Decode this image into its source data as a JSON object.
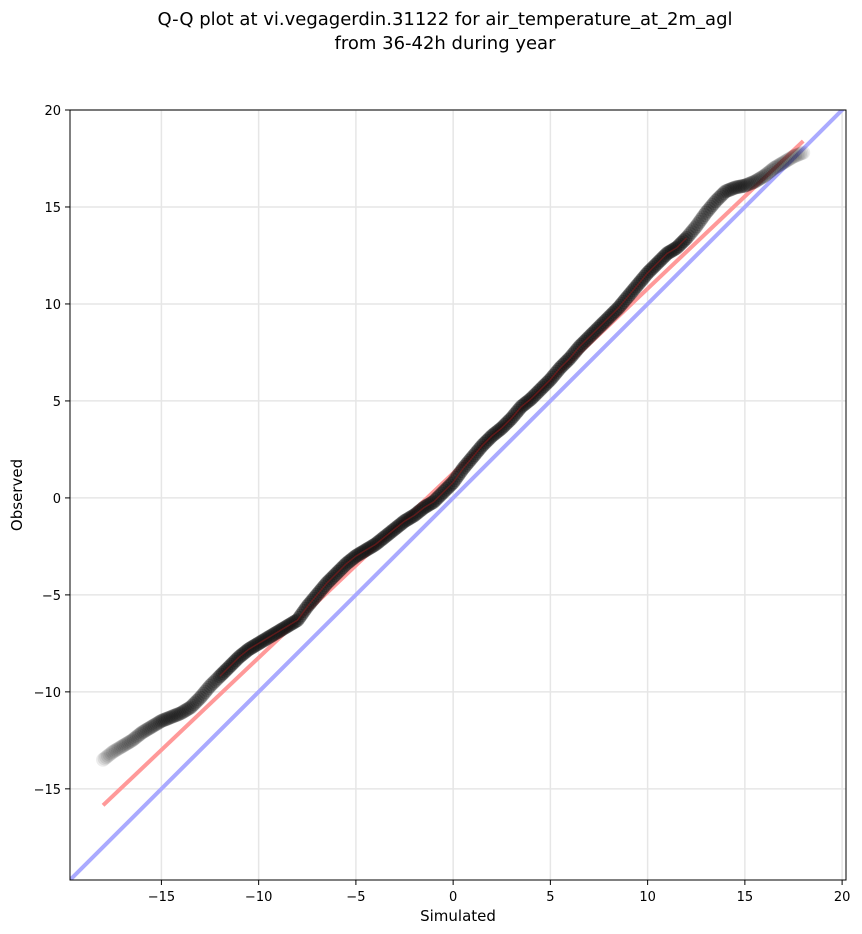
{
  "chart_data": {
    "type": "scatter",
    "title_line1": "Q-Q plot at vi.vegagerdin.31122 for air_temperature_at_2m_agl",
    "title_line2": "from 36-42h during year",
    "xlabel": "Simulated",
    "ylabel": "Observed",
    "xlim": [
      -19.7,
      20.2
    ],
    "ylim": [
      -19.7,
      20.0
    ],
    "xticks": [
      -15,
      -10,
      -5,
      0,
      5,
      10,
      15,
      20
    ],
    "yticks": [
      -15,
      -10,
      -5,
      0,
      5,
      10,
      15,
      20
    ],
    "xtick_labels": [
      "−15",
      "−10",
      "−5",
      "0",
      "5",
      "10",
      "15",
      "20"
    ],
    "ytick_labels": [
      "−15",
      "−10",
      "−5",
      "0",
      "5",
      "10",
      "15",
      "20"
    ],
    "grid": true,
    "quantile_curve": {
      "x": [
        -18.0,
        -17.5,
        -17.0,
        -16.5,
        -16.0,
        -15.5,
        -15.0,
        -14.5,
        -14.0,
        -13.5,
        -13.0,
        -12.5,
        -12.0,
        -11.5,
        -11.0,
        -10.5,
        -10.0,
        -9.5,
        -9.0,
        -8.5,
        -8.0,
        -7.5,
        -7.0,
        -6.5,
        -6.0,
        -5.5,
        -5.0,
        -4.5,
        -4.0,
        -3.5,
        -3.0,
        -2.5,
        -2.0,
        -1.5,
        -1.0,
        -0.5,
        0.0,
        0.5,
        1.0,
        1.5,
        2.0,
        2.5,
        3.0,
        3.5,
        4.0,
        4.5,
        5.0,
        5.5,
        6.0,
        6.5,
        7.0,
        7.5,
        8.0,
        8.5,
        9.0,
        9.5,
        10.0,
        10.5,
        11.0,
        11.5,
        12.0,
        12.5,
        13.0,
        13.5,
        14.0,
        14.5,
        15.0,
        15.5,
        16.0,
        16.5,
        17.0,
        17.5,
        18.0
      ],
      "y": [
        -13.5,
        -13.1,
        -12.8,
        -12.5,
        -12.1,
        -11.8,
        -11.5,
        -11.3,
        -11.1,
        -10.8,
        -10.3,
        -9.7,
        -9.2,
        -8.7,
        -8.2,
        -7.8,
        -7.5,
        -7.2,
        -6.9,
        -6.6,
        -6.3,
        -5.6,
        -5.0,
        -4.4,
        -3.9,
        -3.4,
        -3.0,
        -2.7,
        -2.4,
        -2.0,
        -1.6,
        -1.2,
        -0.9,
        -0.5,
        -0.2,
        0.3,
        0.8,
        1.5,
        2.1,
        2.7,
        3.2,
        3.6,
        4.1,
        4.7,
        5.1,
        5.6,
        6.1,
        6.7,
        7.2,
        7.8,
        8.3,
        8.8,
        9.3,
        9.8,
        10.4,
        11.0,
        11.6,
        12.1,
        12.6,
        12.9,
        13.4,
        14.0,
        14.7,
        15.3,
        15.8,
        16.0,
        16.1,
        16.3,
        16.6,
        17.0,
        17.3,
        17.6,
        17.8
      ]
    },
    "fit_line": {
      "x": [
        -18.0,
        18.0
      ],
      "y": [
        -15.85,
        18.4
      ]
    },
    "identity_line": {
      "x": [
        -19.7,
        20.2
      ],
      "y": [
        -19.7,
        20.2
      ]
    },
    "colors": {
      "points": "#111111",
      "fit_line": "#ff9999",
      "identity_line": "#aaaaff",
      "grid": "#e6e6e6",
      "inner_line": "#8b1a1a"
    }
  }
}
